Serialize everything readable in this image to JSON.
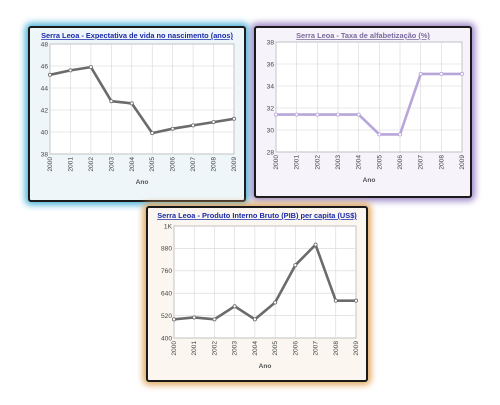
{
  "chart_data": [
    {
      "type": "line",
      "title": "Serra Leoa - Expectativa de vida no nascimento (anos)",
      "xlabel": "Ano",
      "ylabel": "",
      "categories": [
        "2000",
        "2001",
        "2002",
        "2003",
        "2004",
        "2005",
        "2006",
        "2007",
        "2008",
        "2009"
      ],
      "values": [
        45.2,
        45.6,
        45.9,
        42.8,
        42.6,
        39.9,
        40.3,
        40.6,
        40.9,
        41.2
      ],
      "yticks": [
        "38",
        "40",
        "42",
        "44",
        "46",
        "48"
      ],
      "ylim": [
        38,
        48
      ],
      "grid": true,
      "colors": {
        "line": "#6b6b6b",
        "title": "#1a2aa8",
        "plot_bg": "#ffffff"
      }
    },
    {
      "type": "line",
      "title": "Serra Leoa - Taxa de alfabetização (%)",
      "xlabel": "Ano",
      "ylabel": "",
      "categories": [
        "2000",
        "2001",
        "2002",
        "2003",
        "2004",
        "2005",
        "2006",
        "2007",
        "2008",
        "2009"
      ],
      "values": [
        31.4,
        31.4,
        31.4,
        31.4,
        31.4,
        29.6,
        29.6,
        35.1,
        35.1,
        35.1
      ],
      "yticks": [
        "28",
        "30",
        "32",
        "34",
        "36",
        "38"
      ],
      "ylim": [
        28,
        38
      ],
      "grid": true,
      "colors": {
        "line": "#b7a6d9",
        "title": "#7a6a9c",
        "plot_bg": "#ffffff"
      }
    },
    {
      "type": "line",
      "title": "Serra Leoa - Produto Interno Bruto (PIB) per capita (US$)",
      "xlabel": "Ano",
      "ylabel": "",
      "categories": [
        "2000",
        "2001",
        "2002",
        "2003",
        "2004",
        "2005",
        "2006",
        "2007",
        "2008",
        "2009"
      ],
      "values": [
        500,
        510,
        500,
        570,
        500,
        590,
        790,
        900,
        600,
        600
      ],
      "yticks": [
        "400",
        "520",
        "640",
        "760",
        "880",
        "1K"
      ],
      "ylim": [
        400,
        1000
      ],
      "grid": true,
      "colors": {
        "line": "#6b6b6b",
        "title": "#1a2aa8",
        "plot_bg": "#ffffff"
      }
    }
  ]
}
